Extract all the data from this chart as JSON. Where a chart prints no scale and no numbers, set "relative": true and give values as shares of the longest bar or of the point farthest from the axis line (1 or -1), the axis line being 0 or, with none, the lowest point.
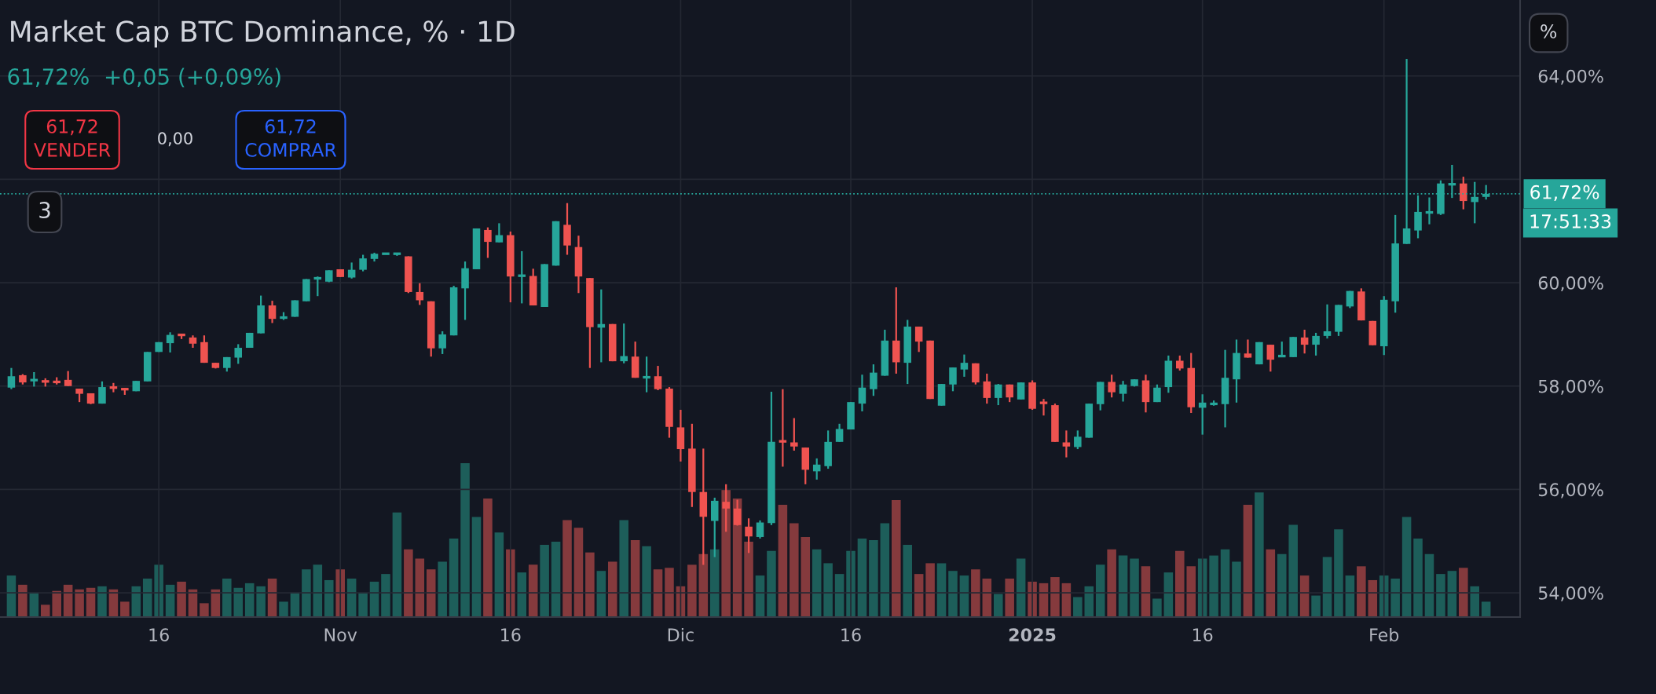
{
  "chart_data": [
    {
      "type": "candlestick",
      "title": "Market Cap BTC Dominance, % · 1D",
      "subtitle": "61,72%  +0,05 (+0,09%)",
      "x": [
        "2024-10-03",
        "2024-10-04",
        "2024-10-05",
        "2024-10-06",
        "2024-10-07",
        "2024-10-08",
        "2024-10-09",
        "2024-10-10",
        "2024-10-11",
        "2024-10-12",
        "2024-10-13",
        "2024-10-14",
        "2024-10-15",
        "2024-10-16",
        "2024-10-17",
        "2024-10-18",
        "2024-10-19",
        "2024-10-20",
        "2024-10-21",
        "2024-10-22",
        "2024-10-23",
        "2024-10-24",
        "2024-10-25",
        "2024-10-26",
        "2024-10-27",
        "2024-10-28",
        "2024-10-29",
        "2024-10-30",
        "2024-10-31",
        "2024-11-01",
        "2024-11-02",
        "2024-11-03",
        "2024-11-04",
        "2024-11-05",
        "2024-11-06",
        "2024-11-07",
        "2024-11-08",
        "2024-11-09",
        "2024-11-10",
        "2024-11-11",
        "2024-11-12",
        "2024-11-13",
        "2024-11-14",
        "2024-11-15",
        "2024-11-16",
        "2024-11-17",
        "2024-11-18",
        "2024-11-19",
        "2024-11-20",
        "2024-11-21",
        "2024-11-22",
        "2024-11-23",
        "2024-11-24",
        "2024-11-25",
        "2024-11-26",
        "2024-11-27",
        "2024-11-28",
        "2024-11-29",
        "2024-11-30",
        "2024-12-01",
        "2024-12-02",
        "2024-12-03",
        "2024-12-04",
        "2024-12-05",
        "2024-12-06",
        "2024-12-07",
        "2024-12-08",
        "2024-12-09",
        "2024-12-10",
        "2024-12-11",
        "2024-12-12",
        "2024-12-13",
        "2024-12-14",
        "2024-12-15",
        "2024-12-16",
        "2024-12-17",
        "2024-12-18",
        "2024-12-19",
        "2024-12-20",
        "2024-12-21",
        "2024-12-22",
        "2024-12-23",
        "2024-12-24",
        "2024-12-25",
        "2024-12-26",
        "2024-12-27",
        "2024-12-28",
        "2024-12-29",
        "2024-12-30",
        "2024-12-31",
        "2025-01-01",
        "2025-01-02",
        "2025-01-03",
        "2025-01-04",
        "2025-01-05",
        "2025-01-06",
        "2025-01-07",
        "2025-01-08",
        "2025-01-09",
        "2025-01-10",
        "2025-01-11",
        "2025-01-12",
        "2025-01-13",
        "2025-01-14",
        "2025-01-15",
        "2025-01-16",
        "2025-01-17",
        "2025-01-18",
        "2025-01-19",
        "2025-01-20",
        "2025-01-21",
        "2025-01-22",
        "2025-01-23",
        "2025-01-24",
        "2025-01-25",
        "2025-01-26",
        "2025-01-27",
        "2025-01-28",
        "2025-01-29",
        "2025-01-30",
        "2025-01-31",
        "2025-02-01",
        "2025-02-02",
        "2025-02-03",
        "2025-02-04",
        "2025-02-05",
        "2025-02-06",
        "2025-02-07",
        "2025-02-08",
        "2025-02-09",
        "2025-02-10"
      ],
      "ohlc": [
        [
          57.97,
          58.35,
          57.94,
          58.19
        ],
        [
          58.21,
          58.23,
          58.03,
          58.07
        ],
        [
          58.09,
          58.27,
          57.99,
          58.14
        ],
        [
          58.11,
          58.15,
          57.99,
          58.07
        ],
        [
          58.09,
          58.17,
          58.03,
          58.07
        ],
        [
          58.12,
          58.29,
          58.0,
          58.0
        ],
        [
          57.95,
          57.95,
          57.69,
          57.85
        ],
        [
          57.86,
          57.86,
          57.65,
          57.66
        ],
        [
          57.66,
          58.09,
          57.66,
          57.98
        ],
        [
          57.99,
          58.06,
          57.88,
          57.95
        ],
        [
          57.96,
          57.96,
          57.83,
          57.92
        ],
        [
          57.9,
          58.1,
          57.9,
          58.1
        ],
        [
          58.09,
          58.66,
          58.09,
          58.66
        ],
        [
          58.66,
          58.85,
          58.66,
          58.85
        ],
        [
          58.83,
          59.04,
          58.65,
          58.99
        ],
        [
          59.0,
          59.0,
          58.91,
          58.98
        ],
        [
          58.94,
          58.98,
          58.74,
          58.82
        ],
        [
          58.85,
          58.98,
          58.45,
          58.45
        ],
        [
          58.45,
          58.45,
          58.34,
          58.35
        ],
        [
          58.35,
          58.56,
          58.28,
          58.56
        ],
        [
          58.55,
          58.81,
          58.43,
          58.74
        ],
        [
          58.74,
          59.03,
          58.74,
          59.03
        ],
        [
          59.02,
          59.75,
          59.02,
          59.56
        ],
        [
          59.56,
          59.65,
          59.22,
          59.3
        ],
        [
          59.3,
          59.43,
          59.28,
          59.35
        ],
        [
          59.34,
          59.66,
          59.34,
          59.66
        ],
        [
          59.64,
          60.07,
          59.64,
          60.07
        ],
        [
          60.08,
          60.12,
          59.74,
          60.09
        ],
        [
          60.02,
          60.24,
          60.01,
          60.24
        ],
        [
          60.26,
          60.26,
          60.11,
          60.11
        ],
        [
          60.1,
          60.39,
          60.08,
          60.25
        ],
        [
          60.25,
          60.54,
          60.22,
          60.47
        ],
        [
          60.46,
          60.58,
          60.41,
          60.56
        ],
        [
          60.55,
          60.57,
          60.55,
          60.57
        ],
        [
          60.55,
          60.57,
          60.52,
          60.57
        ],
        [
          60.51,
          60.51,
          59.8,
          59.82
        ],
        [
          59.82,
          59.99,
          59.57,
          59.66
        ],
        [
          59.64,
          59.64,
          58.57,
          58.73
        ],
        [
          58.73,
          59.06,
          58.62,
          59.0
        ],
        [
          58.98,
          59.94,
          58.98,
          59.91
        ],
        [
          59.89,
          60.41,
          59.28,
          60.28
        ],
        [
          60.26,
          61.05,
          60.26,
          61.05
        ],
        [
          61.02,
          61.07,
          60.48,
          60.79
        ],
        [
          60.78,
          61.15,
          60.78,
          60.92
        ],
        [
          60.92,
          60.99,
          59.62,
          60.12
        ],
        [
          60.12,
          60.61,
          59.6,
          60.15
        ],
        [
          60.13,
          60.27,
          59.56,
          59.56
        ],
        [
          59.53,
          60.36,
          59.53,
          60.36
        ],
        [
          60.33,
          61.19,
          60.33,
          61.19
        ],
        [
          61.12,
          61.54,
          60.54,
          60.72
        ],
        [
          60.69,
          60.91,
          59.8,
          60.12
        ],
        [
          60.09,
          60.09,
          58.35,
          59.14
        ],
        [
          59.13,
          59.87,
          58.46,
          59.2
        ],
        [
          59.2,
          59.2,
          58.48,
          58.48
        ],
        [
          58.48,
          59.21,
          58.44,
          58.58
        ],
        [
          58.57,
          58.86,
          58.16,
          58.16
        ],
        [
          58.15,
          58.57,
          57.88,
          58.19
        ],
        [
          58.19,
          58.39,
          57.92,
          57.94
        ],
        [
          57.95,
          57.98,
          57.0,
          57.21
        ],
        [
          57.2,
          57.54,
          56.54,
          56.78
        ],
        [
          56.79,
          57.27,
          55.66,
          55.95
        ],
        [
          55.95,
          56.79,
          54.54,
          55.47
        ],
        [
          55.39,
          55.84,
          54.69,
          55.78
        ],
        [
          55.76,
          56.1,
          55.18,
          55.63
        ],
        [
          55.63,
          55.8,
          55.3,
          55.31
        ],
        [
          55.28,
          55.44,
          54.77,
          55.09
        ],
        [
          55.08,
          55.4,
          55.05,
          55.36
        ],
        [
          55.35,
          57.89,
          55.31,
          56.92
        ],
        [
          56.94,
          57.94,
          56.44,
          56.92
        ],
        [
          56.91,
          57.38,
          56.75,
          56.83
        ],
        [
          56.81,
          56.81,
          56.1,
          56.38
        ],
        [
          56.35,
          56.6,
          56.19,
          56.48
        ],
        [
          56.45,
          57.14,
          56.4,
          56.92
        ],
        [
          56.92,
          57.27,
          56.92,
          57.17
        ],
        [
          57.16,
          57.69,
          57.16,
          57.69
        ],
        [
          57.66,
          58.22,
          57.51,
          57.97
        ],
        [
          57.94,
          58.42,
          57.81,
          58.26
        ],
        [
          58.2,
          59.09,
          58.2,
          58.88
        ],
        [
          58.88,
          59.91,
          58.24,
          58.46
        ],
        [
          58.45,
          59.28,
          58.04,
          59.15
        ],
        [
          59.15,
          59.15,
          58.66,
          58.86
        ],
        [
          58.88,
          58.88,
          57.75,
          57.75
        ],
        [
          57.62,
          58.04,
          57.62,
          58.04
        ],
        [
          58.03,
          58.36,
          57.9,
          58.36
        ],
        [
          58.32,
          58.61,
          58.18,
          58.45
        ],
        [
          58.44,
          58.44,
          58.03,
          58.07
        ],
        [
          58.09,
          58.24,
          57.66,
          57.77
        ],
        [
          57.77,
          58.04,
          57.63,
          58.03
        ],
        [
          58.03,
          58.03,
          57.69,
          57.78
        ],
        [
          57.74,
          58.07,
          57.74,
          58.07
        ],
        [
          58.07,
          58.11,
          57.54,
          57.56
        ],
        [
          57.69,
          57.75,
          57.43,
          57.66
        ],
        [
          57.63,
          57.66,
          56.92,
          56.92
        ],
        [
          56.91,
          57.14,
          56.62,
          56.83
        ],
        [
          56.82,
          57.14,
          56.78,
          57.02
        ],
        [
          57.0,
          57.66,
          57.0,
          57.66
        ],
        [
          57.65,
          58.08,
          57.53,
          58.08
        ],
        [
          58.08,
          58.22,
          57.78,
          57.88
        ],
        [
          57.85,
          58.1,
          57.7,
          58.03
        ],
        [
          58.0,
          58.13,
          57.99,
          58.13
        ],
        [
          58.11,
          58.22,
          57.49,
          57.69
        ],
        [
          57.69,
          58.03,
          57.69,
          57.97
        ],
        [
          57.98,
          58.59,
          57.87,
          58.49
        ],
        [
          58.49,
          58.59,
          58.3,
          58.34
        ],
        [
          58.35,
          58.64,
          57.48,
          57.59
        ],
        [
          57.58,
          57.84,
          57.06,
          57.68
        ],
        [
          57.63,
          57.72,
          57.62,
          57.68
        ],
        [
          57.65,
          58.7,
          57.2,
          58.16
        ],
        [
          58.13,
          58.9,
          57.68,
          58.64
        ],
        [
          58.63,
          58.9,
          58.55,
          58.55
        ],
        [
          58.42,
          58.85,
          58.42,
          58.85
        ],
        [
          58.8,
          58.8,
          58.28,
          58.51
        ],
        [
          58.57,
          58.86,
          58.57,
          58.59
        ],
        [
          58.56,
          58.95,
          58.56,
          58.95
        ],
        [
          58.94,
          59.09,
          58.63,
          58.8
        ],
        [
          58.8,
          59.03,
          58.59,
          58.97
        ],
        [
          58.97,
          59.58,
          58.92,
          59.06
        ],
        [
          59.05,
          59.57,
          58.97,
          59.57
        ],
        [
          59.54,
          59.84,
          59.51,
          59.84
        ],
        [
          59.83,
          59.89,
          59.27,
          59.27
        ],
        [
          59.26,
          59.26,
          58.79,
          58.79
        ],
        [
          58.77,
          59.74,
          58.6,
          59.67
        ],
        [
          59.64,
          61.31,
          59.42,
          60.76
        ],
        [
          60.75,
          64.33,
          60.75,
          61.05
        ],
        [
          61.01,
          61.69,
          60.86,
          61.37
        ],
        [
          61.35,
          61.65,
          61.13,
          61.37
        ],
        [
          61.33,
          61.98,
          61.31,
          61.92
        ],
        [
          61.89,
          62.28,
          61.64,
          61.92
        ],
        [
          61.92,
          62.05,
          61.42,
          61.58
        ],
        [
          61.56,
          61.95,
          61.15,
          61.66
        ],
        [
          61.66,
          61.89,
          61.61,
          61.72
        ]
      ],
      "colors": [
        "#26a69a",
        "#ef5350",
        "#26a69a",
        "#ef5350",
        "#ef5350",
        "#ef5350",
        "#ef5350",
        "#ef5350",
        "#26a69a",
        "#ef5350",
        "#ef5350",
        "#26a69a",
        "#26a69a",
        "#26a69a",
        "#26a69a",
        "#ef5350",
        "#ef5350",
        "#ef5350",
        "#ef5350",
        "#26a69a",
        "#26a69a",
        "#26a69a",
        "#26a69a",
        "#ef5350",
        "#26a69a",
        "#26a69a",
        "#26a69a",
        "#26a69a",
        "#26a69a",
        "#ef5350",
        "#26a69a",
        "#26a69a",
        "#26a69a",
        "#26a69a",
        "#26a69a",
        "#ef5350",
        "#ef5350",
        "#ef5350",
        "#26a69a",
        "#26a69a",
        "#26a69a",
        "#26a69a",
        "#ef5350",
        "#26a69a",
        "#ef5350",
        "#26a69a",
        "#ef5350",
        "#26a69a",
        "#26a69a",
        "#ef5350",
        "#ef5350",
        "#ef5350",
        "#26a69a",
        "#ef5350",
        "#26a69a",
        "#ef5350",
        "#26a69a",
        "#ef5350",
        "#ef5350",
        "#ef5350",
        "#ef5350",
        "#ef5350",
        "#26a69a",
        "#ef5350",
        "#ef5350",
        "#ef5350",
        "#26a69a",
        "#26a69a",
        "#ef5350",
        "#ef5350",
        "#ef5350",
        "#26a69a",
        "#26a69a",
        "#26a69a",
        "#26a69a",
        "#26a69a",
        "#26a69a",
        "#26a69a",
        "#ef5350",
        "#26a69a",
        "#ef5350",
        "#ef5350",
        "#26a69a",
        "#26a69a",
        "#26a69a",
        "#ef5350",
        "#ef5350",
        "#26a69a",
        "#ef5350",
        "#26a69a",
        "#ef5350",
        "#ef5350",
        "#ef5350",
        "#ef5350",
        "#26a69a",
        "#26a69a",
        "#26a69a",
        "#ef5350",
        "#26a69a",
        "#26a69a",
        "#ef5350",
        "#26a69a",
        "#26a69a",
        "#ef5350",
        "#ef5350",
        "#26a69a",
        "#26a69a",
        "#26a69a",
        "#26a69a",
        "#ef5350",
        "#26a69a",
        "#ef5350",
        "#26a69a",
        "#26a69a",
        "#ef5350",
        "#26a69a",
        "#26a69a",
        "#26a69a",
        "#26a69a",
        "#ef5350",
        "#ef5350",
        "#26a69a",
        "#26a69a",
        "#26a69a",
        "#26a69a",
        "#26a69a",
        "#26a69a",
        "#26a69a",
        "#ef5350",
        "#26a69a",
        "#26a69a"
      ],
      "xlim": [
        "2024-10-02",
        "2025-02-13"
      ],
      "xticks": [
        {
          "value": "2024-10-16",
          "label": "16"
        },
        {
          "value": "2024-11-01",
          "label": "Nov"
        },
        {
          "value": "2024-11-16",
          "label": "16"
        },
        {
          "value": "2024-12-01",
          "label": "Dic"
        },
        {
          "value": "2024-12-16",
          "label": "16"
        },
        {
          "value": "2025-01-01",
          "label": "2025"
        },
        {
          "value": "2025-01-16",
          "label": "16"
        },
        {
          "value": "2025-02-01",
          "label": "Feb"
        }
      ],
      "ylim": [
        53.53,
        65.47
      ],
      "yticks": [
        {
          "value": 54,
          "label": "54,00%"
        },
        {
          "value": 56,
          "label": "56,00%"
        },
        {
          "value": 58,
          "label": "58,00%"
        },
        {
          "value": 60,
          "label": "60,00%"
        },
        {
          "value": 62,
          "label": null
        },
        {
          "value": 64,
          "label": "64,00%"
        }
      ],
      "grid": true,
      "ref_lines": [
        {
          "axis": "y",
          "value": 61.72,
          "label": "61,72%",
          "color": "#26a69a",
          "line_style": "dotted"
        }
      ],
      "annotations": [
        "61,72\nVENDER",
        "0,00",
        "61,72\nCOMPRAR",
        "3",
        "17:51:33",
        "%"
      ]
    },
    {
      "type": "bar",
      "relative": true,
      "tick_labels": false,
      "categories": [
        null,
        null,
        null,
        null,
        null,
        null,
        null,
        null,
        null,
        null,
        null,
        null,
        null,
        null,
        null,
        null,
        null,
        null,
        null,
        null,
        null,
        null,
        null,
        null,
        null,
        null,
        null,
        null,
        null,
        null,
        null,
        null,
        null,
        null,
        null,
        null,
        null,
        null,
        null,
        null,
        null,
        null,
        null,
        null,
        null,
        null,
        null,
        null,
        null,
        null,
        null,
        null,
        null,
        null,
        null,
        null,
        null,
        null,
        null,
        null,
        null,
        null,
        null,
        null,
        null,
        null,
        null,
        null,
        null,
        null,
        null,
        null,
        null,
        null,
        null,
        null,
        null,
        null,
        null,
        null,
        null,
        null,
        null,
        null,
        null,
        null,
        null,
        null,
        null,
        null,
        null,
        null,
        null,
        null,
        null,
        null,
        null,
        null,
        null,
        null,
        null,
        null,
        null,
        null,
        null,
        null,
        null,
        null,
        null,
        null,
        null,
        null,
        null,
        null,
        null,
        null,
        null,
        null,
        null,
        null,
        null,
        null,
        null,
        null,
        null,
        null,
        null,
        null,
        null,
        null,
        null
      ],
      "values": [
        0.27,
        0.21,
        0.16,
        0.08,
        0.17,
        0.21,
        0.18,
        0.19,
        0.2,
        0.18,
        0.1,
        0.2,
        0.25,
        0.34,
        0.21,
        0.23,
        0.18,
        0.09,
        0.18,
        0.25,
        0.19,
        0.22,
        0.2,
        0.25,
        0.1,
        0.16,
        0.31,
        0.34,
        0.24,
        0.31,
        0.25,
        0.16,
        0.23,
        0.28,
        0.68,
        0.44,
        0.38,
        0.31,
        0.36,
        0.51,
        1,
        0.65,
        0.77,
        0.55,
        0.44,
        0.29,
        0.34,
        0.47,
        0.49,
        0.63,
        0.58,
        0.42,
        0.3,
        0.36,
        0.63,
        0.5,
        0.46,
        0.31,
        0.32,
        0.2,
        0.34,
        0.41,
        0.44,
        0.83,
        0.77,
        0.49,
        0.27,
        0.43,
        0.73,
        0.61,
        0.52,
        0.44,
        0.35,
        0.28,
        0.43,
        0.51,
        0.5,
        0.61,
        0.76,
        0.47,
        0.28,
        0.35,
        0.35,
        0.3,
        0.27,
        0.31,
        0.25,
        0.15,
        0.25,
        0.38,
        0.23,
        0.22,
        0.26,
        0.22,
        0.13,
        0.2,
        0.34,
        0.44,
        0.4,
        0.38,
        0.33,
        0.12,
        0.29,
        0.43,
        0.33,
        0.38,
        0.4,
        0.44,
        0.36,
        0.73,
        0.81,
        0.44,
        0.41,
        0.6,
        0.27,
        0.14,
        0.39,
        0.57,
        0.27,
        0.33,
        0.24,
        0.27,
        0.25,
        0.65,
        0.51,
        0.41,
        0.28,
        0.3,
        0.32,
        0.2,
        0.1
      ],
      "colors": [
        "#1d5e5a",
        "#853a3d",
        "#1d5e5a",
        "#853a3d",
        "#853a3d",
        "#853a3d",
        "#853a3d",
        "#853a3d",
        "#1d5e5a",
        "#853a3d",
        "#853a3d",
        "#1d5e5a",
        "#1d5e5a",
        "#1d5e5a",
        "#1d5e5a",
        "#853a3d",
        "#853a3d",
        "#853a3d",
        "#853a3d",
        "#1d5e5a",
        "#1d5e5a",
        "#1d5e5a",
        "#1d5e5a",
        "#853a3d",
        "#1d5e5a",
        "#1d5e5a",
        "#1d5e5a",
        "#1d5e5a",
        "#1d5e5a",
        "#853a3d",
        "#1d5e5a",
        "#1d5e5a",
        "#1d5e5a",
        "#1d5e5a",
        "#1d5e5a",
        "#853a3d",
        "#853a3d",
        "#853a3d",
        "#1d5e5a",
        "#1d5e5a",
        "#1d5e5a",
        "#1d5e5a",
        "#853a3d",
        "#1d5e5a",
        "#853a3d",
        "#1d5e5a",
        "#853a3d",
        "#1d5e5a",
        "#1d5e5a",
        "#853a3d",
        "#853a3d",
        "#853a3d",
        "#1d5e5a",
        "#853a3d",
        "#1d5e5a",
        "#853a3d",
        "#1d5e5a",
        "#853a3d",
        "#853a3d",
        "#853a3d",
        "#853a3d",
        "#853a3d",
        "#1d5e5a",
        "#853a3d",
        "#853a3d",
        "#853a3d",
        "#1d5e5a",
        "#1d5e5a",
        "#853a3d",
        "#853a3d",
        "#853a3d",
        "#1d5e5a",
        "#1d5e5a",
        "#1d5e5a",
        "#1d5e5a",
        "#1d5e5a",
        "#1d5e5a",
        "#1d5e5a",
        "#853a3d",
        "#1d5e5a",
        "#853a3d",
        "#853a3d",
        "#1d5e5a",
        "#1d5e5a",
        "#1d5e5a",
        "#853a3d",
        "#853a3d",
        "#1d5e5a",
        "#853a3d",
        "#1d5e5a",
        "#853a3d",
        "#853a3d",
        "#853a3d",
        "#853a3d",
        "#1d5e5a",
        "#1d5e5a",
        "#1d5e5a",
        "#853a3d",
        "#1d5e5a",
        "#1d5e5a",
        "#853a3d",
        "#1d5e5a",
        "#1d5e5a",
        "#853a3d",
        "#853a3d",
        "#1d5e5a",
        "#1d5e5a",
        "#1d5e5a",
        "#1d5e5a",
        "#853a3d",
        "#1d5e5a",
        "#853a3d",
        "#1d5e5a",
        "#1d5e5a",
        "#853a3d",
        "#1d5e5a",
        "#1d5e5a",
        "#1d5e5a",
        "#1d5e5a",
        "#853a3d",
        "#853a3d",
        "#1d5e5a",
        "#1d5e5a",
        "#1d5e5a",
        "#1d5e5a",
        "#1d5e5a",
        "#1d5e5a",
        "#1d5e5a",
        "#853a3d",
        "#1d5e5a",
        "#1d5e5a"
      ]
    }
  ]
}
